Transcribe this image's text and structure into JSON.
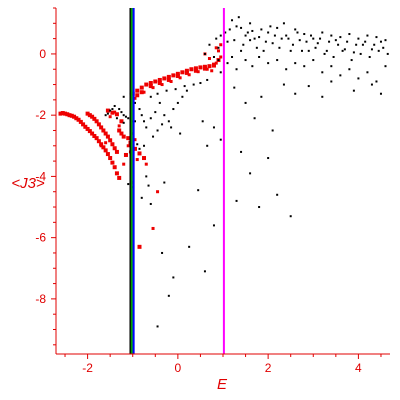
{
  "chart_data": {
    "type": "scatter",
    "title": "",
    "xlabel": "E",
    "ylabel": "<J3>",
    "xlim": [
      -2.7,
      4.7
    ],
    "ylim": [
      -9.8,
      1.5
    ],
    "grid": false,
    "x_ticks": [
      -2,
      0,
      2,
      4
    ],
    "y_ticks": [
      0,
      -2,
      -4,
      -6,
      -8
    ],
    "x_tick_labels": [
      "-2",
      "0",
      "2",
      "4"
    ],
    "y_tick_labels": [
      "0",
      "-2",
      "-4",
      "-6",
      "-8"
    ],
    "colors": {
      "axis": "#e00000",
      "red_series": "#ee0000",
      "black_series": "#000000",
      "line_black": "#000000",
      "line_green": "#00a000",
      "line_blue": "#0000ff",
      "line_magenta": "#ff00ff"
    },
    "vertical_lines": [
      {
        "x": -1.05,
        "color": "#000000"
      },
      {
        "x": -1.02,
        "color": "#00a000"
      },
      {
        "x": -0.98,
        "color": "#0000ff"
      },
      {
        "x": 1.02,
        "color": "#ff00ff"
      }
    ],
    "series": [
      {
        "color": "#ee0000",
        "size": "large",
        "points": [
          [
            -2.6,
            -1.95
          ],
          [
            -2.55,
            -1.93
          ],
          [
            -2.5,
            -1.95
          ],
          [
            -2.45,
            -1.97
          ],
          [
            -2.4,
            -2.0
          ],
          [
            -2.35,
            -2.02
          ],
          [
            -2.3,
            -2.05
          ],
          [
            -2.25,
            -2.1
          ],
          [
            -2.2,
            -2.15
          ],
          [
            -2.15,
            -2.22
          ],
          [
            -2.1,
            -2.3
          ],
          [
            -2.05,
            -2.38
          ],
          [
            -2.0,
            -2.45
          ],
          [
            -1.95,
            -2.52
          ],
          [
            -1.9,
            -2.6
          ],
          [
            -1.85,
            -2.68
          ],
          [
            -1.8,
            -2.75
          ],
          [
            -1.75,
            -2.85
          ],
          [
            -1.7,
            -2.95
          ],
          [
            -1.65,
            -3.05
          ],
          [
            -1.6,
            -3.15
          ],
          [
            -1.55,
            -3.27
          ],
          [
            -1.5,
            -3.4
          ],
          [
            -1.45,
            -3.55
          ],
          [
            -1.4,
            -3.7
          ],
          [
            -1.35,
            -3.9
          ],
          [
            -1.3,
            -4.05
          ],
          [
            -2.0,
            -1.95
          ],
          [
            -1.95,
            -2.0
          ],
          [
            -1.9,
            -2.05
          ],
          [
            -1.85,
            -2.12
          ],
          [
            -1.8,
            -2.2
          ],
          [
            -1.75,
            -2.3
          ],
          [
            -1.7,
            -2.4
          ],
          [
            -1.65,
            -2.5
          ],
          [
            -1.6,
            -2.6
          ],
          [
            -1.55,
            -2.7
          ],
          [
            -1.5,
            -2.82
          ],
          [
            -1.45,
            -2.95
          ],
          [
            -1.4,
            -3.08
          ],
          [
            -1.35,
            -3.2
          ],
          [
            -1.55,
            -1.85
          ],
          [
            -1.45,
            -1.92
          ],
          [
            -1.35,
            -1.97
          ],
          [
            -1.25,
            -2.2
          ],
          [
            -1.0,
            -1.3
          ],
          [
            -0.9,
            -1.2
          ],
          [
            -0.8,
            -1.1
          ],
          [
            -0.7,
            -1.0
          ],
          [
            -0.6,
            -0.95
          ],
          [
            -0.5,
            -0.9
          ],
          [
            -0.4,
            -0.85
          ],
          [
            -0.3,
            -0.8
          ],
          [
            -0.2,
            -0.75
          ],
          [
            -0.1,
            -0.7
          ],
          [
            0.0,
            -0.65
          ],
          [
            0.1,
            -0.6
          ],
          [
            0.2,
            -0.55
          ],
          [
            0.3,
            -0.5
          ],
          [
            0.4,
            -0.47
          ],
          [
            0.5,
            -0.44
          ],
          [
            0.6,
            -0.42
          ],
          [
            0.7,
            -0.4
          ],
          [
            0.8,
            -0.38
          ],
          [
            -0.9,
            -1.35
          ],
          [
            -0.8,
            -1.25
          ],
          [
            -0.6,
            -1.05
          ],
          [
            -0.4,
            -0.95
          ],
          [
            -0.2,
            -0.85
          ],
          [
            0.0,
            -0.72
          ],
          [
            0.2,
            -0.62
          ],
          [
            0.4,
            -0.55
          ],
          [
            0.6,
            -0.48
          ],
          [
            0.8,
            -0.35
          ],
          [
            0.9,
            -0.2
          ],
          [
            -1.3,
            -2.5
          ],
          [
            -1.25,
            -2.6
          ],
          [
            -1.2,
            -2.7
          ],
          [
            -1.1,
            -2.75
          ],
          [
            -1.05,
            -2.9
          ],
          [
            -0.95,
            -3.1
          ],
          [
            -0.85,
            -3.25
          ],
          [
            -0.75,
            -3.4
          ],
          [
            -1.15,
            -3.3
          ],
          [
            -0.85,
            -6.3
          ]
        ]
      },
      {
        "color": "#ee0000",
        "size": "small",
        "points": [
          [
            -0.95,
            -1.45
          ],
          [
            -0.75,
            -1.25
          ],
          [
            -0.55,
            -1.1
          ],
          [
            -0.35,
            -1.0
          ],
          [
            -0.15,
            -0.9
          ],
          [
            0.05,
            -0.78
          ],
          [
            0.25,
            -0.68
          ],
          [
            0.45,
            -0.58
          ],
          [
            0.65,
            -0.5
          ],
          [
            0.85,
            -0.3
          ],
          [
            0.9,
            0.1
          ],
          [
            0.95,
            -0.1
          ],
          [
            -1.0,
            -2.6
          ],
          [
            -0.95,
            -2.8
          ],
          [
            -1.1,
            -3.0
          ],
          [
            -1.05,
            -3.2
          ],
          [
            -0.9,
            -3.45
          ],
          [
            -0.7,
            -3.6
          ],
          [
            -1.4,
            -1.9
          ],
          [
            -1.5,
            -2.05
          ],
          [
            -1.3,
            -2.35
          ],
          [
            -0.55,
            -5.7
          ],
          [
            -0.45,
            -4.5
          ],
          [
            -1.2,
            -3.6
          ],
          [
            -1.6,
            -2.9
          ],
          [
            -1.7,
            -3.0
          ],
          [
            -1.0,
            -4.2
          ],
          [
            0.6,
            0.0
          ],
          [
            0.7,
            -0.15
          ],
          [
            0.85,
            0.2
          ],
          [
            0.95,
            0.3
          ],
          [
            0.75,
            -0.55
          ]
        ]
      },
      {
        "color": "#000000",
        "size": "dot",
        "points": [
          [
            -1.3,
            -1.8
          ],
          [
            -1.25,
            -1.9
          ],
          [
            -1.2,
            -2.0
          ],
          [
            -1.15,
            -2.05
          ],
          [
            -1.1,
            -2.1
          ],
          [
            -1.05,
            -2.15
          ],
          [
            -1.0,
            -2.2
          ],
          [
            -0.95,
            -2.2
          ],
          [
            -1.4,
            -1.7
          ],
          [
            -1.45,
            -1.8
          ],
          [
            -1.5,
            -1.85
          ],
          [
            -1.55,
            -1.95
          ],
          [
            -1.6,
            -2.0
          ],
          [
            -1.35,
            -2.1
          ],
          [
            -1.2,
            -2.25
          ],
          [
            -1.2,
            -1.4
          ],
          [
            -1.05,
            -1.3
          ],
          [
            -0.95,
            -1.6
          ],
          [
            -0.85,
            -1.8
          ],
          [
            -0.8,
            -2.0
          ],
          [
            -0.75,
            -2.2
          ],
          [
            -0.7,
            -2.4
          ],
          [
            -0.6,
            -2.1
          ],
          [
            -0.5,
            -1.9
          ],
          [
            -0.4,
            -1.6
          ],
          [
            -0.3,
            -2.0
          ],
          [
            -0.2,
            -2.2
          ],
          [
            -0.1,
            -1.8
          ],
          [
            0.0,
            -1.6
          ],
          [
            0.1,
            -1.4
          ],
          [
            0.2,
            -1.2
          ],
          [
            -0.6,
            -1.4
          ],
          [
            -0.45,
            -1.3
          ],
          [
            -0.25,
            -1.2
          ],
          [
            -0.05,
            -1.15
          ],
          [
            0.15,
            -1.05
          ],
          [
            0.35,
            -1.0
          ],
          [
            0.5,
            -0.95
          ],
          [
            0.65,
            -0.85
          ],
          [
            -1.0,
            -2.6
          ],
          [
            -0.9,
            -2.95
          ],
          [
            -0.85,
            -3.1
          ],
          [
            -0.75,
            -3.0
          ],
          [
            -0.55,
            -2.7
          ],
          [
            -0.45,
            -2.5
          ],
          [
            -0.35,
            -2.3
          ],
          [
            -0.15,
            -2.4
          ],
          [
            0.05,
            -2.6
          ],
          [
            -0.7,
            -4.0
          ],
          [
            -0.65,
            -4.3
          ],
          [
            -0.6,
            -4.9
          ],
          [
            -0.8,
            -4.7
          ],
          [
            -0.3,
            -4.2
          ],
          [
            0.45,
            -4.45
          ],
          [
            0.8,
            -5.6
          ],
          [
            -0.35,
            -6.5
          ],
          [
            -0.2,
            -7.9
          ],
          [
            -0.1,
            -7.3
          ],
          [
            0.25,
            -6.3
          ],
          [
            0.6,
            -7.1
          ],
          [
            -1.1,
            -4.25
          ],
          [
            -1.0,
            -4.35
          ],
          [
            -0.45,
            -8.9
          ],
          [
            0.95,
            -0.6
          ],
          [
            0.9,
            -0.2
          ],
          [
            0.85,
            0.5
          ],
          [
            0.9,
            0.2
          ],
          [
            0.95,
            0.6
          ],
          [
            0.8,
            -0.1
          ],
          [
            0.7,
            0.3
          ],
          [
            0.6,
            0.0
          ],
          [
            1.1,
            0.4
          ],
          [
            1.2,
            1.1
          ],
          [
            1.3,
            0.9
          ],
          [
            1.35,
            1.2
          ],
          [
            1.45,
            0.3
          ],
          [
            1.55,
            0.7
          ],
          [
            1.6,
            1.0
          ],
          [
            1.7,
            0.5
          ],
          [
            1.75,
            0.2
          ],
          [
            1.85,
            0.8
          ],
          [
            1.95,
            0.4
          ],
          [
            2.05,
            0.9
          ],
          [
            2.15,
            0.6
          ],
          [
            2.25,
            0.2
          ],
          [
            2.35,
            1.0
          ],
          [
            2.45,
            0.5
          ],
          [
            2.55,
            0.3
          ],
          [
            2.65,
            0.7
          ],
          [
            2.75,
            0.1
          ],
          [
            2.85,
            0.4
          ],
          [
            2.95,
            0.6
          ],
          [
            3.05,
            0.2
          ],
          [
            3.15,
            0.5
          ],
          [
            3.25,
            0.0
          ],
          [
            3.35,
            0.4
          ],
          [
            3.45,
            -0.1
          ],
          [
            3.55,
            0.3
          ],
          [
            3.65,
            0.1
          ],
          [
            3.75,
            0.4
          ],
          [
            3.85,
            -0.2
          ],
          [
            3.95,
            0.3
          ],
          [
            4.05,
            0.0
          ],
          [
            4.15,
            0.4
          ],
          [
            4.25,
            -0.1
          ],
          [
            4.35,
            0.3
          ],
          [
            4.45,
            0.1
          ],
          [
            4.55,
            0.2
          ],
          [
            4.65,
            0.0
          ],
          [
            1.1,
            -0.3
          ],
          [
            1.2,
            -0.1
          ],
          [
            1.3,
            -0.5
          ],
          [
            1.5,
            -0.2
          ],
          [
            1.65,
            -0.4
          ],
          [
            1.8,
            -0.1
          ],
          [
            2.0,
            -0.3
          ],
          [
            2.2,
            -0.2
          ],
          [
            2.4,
            -0.5
          ],
          [
            2.6,
            -0.3
          ],
          [
            2.8,
            -0.4
          ],
          [
            3.0,
            -0.2
          ],
          [
            3.2,
            -0.6
          ],
          [
            3.4,
            -0.4
          ],
          [
            3.6,
            -0.7
          ],
          [
            3.8,
            -0.5
          ],
          [
            4.0,
            -0.8
          ],
          [
            4.2,
            -0.6
          ],
          [
            4.4,
            -0.9
          ],
          [
            4.6,
            -0.4
          ],
          [
            1.25,
            -1.1
          ],
          [
            1.5,
            -1.6
          ],
          [
            1.7,
            -2.1
          ],
          [
            1.85,
            -1.4
          ],
          [
            2.1,
            -2.5
          ],
          [
            2.35,
            -1.0
          ],
          [
            2.6,
            -1.3
          ],
          [
            2.9,
            -1.05
          ],
          [
            3.2,
            -1.4
          ],
          [
            3.4,
            -0.9
          ],
          [
            3.9,
            -1.2
          ],
          [
            4.3,
            -1.0
          ],
          [
            4.5,
            -1.3
          ],
          [
            1.4,
            -3.2
          ],
          [
            1.6,
            -3.9
          ],
          [
            2.0,
            -3.4
          ],
          [
            2.2,
            -4.6
          ],
          [
            1.8,
            -5.0
          ],
          [
            2.5,
            -5.3
          ],
          [
            1.3,
            -4.8
          ],
          [
            0.95,
            -2.8
          ],
          [
            0.8,
            -2.4
          ],
          [
            0.65,
            -3.0
          ],
          [
            0.55,
            -2.2
          ],
          [
            1.4,
            0.1
          ],
          [
            1.6,
            0.45
          ],
          [
            1.9,
            0.1
          ],
          [
            2.1,
            0.35
          ],
          [
            2.3,
            0.5
          ],
          [
            2.5,
            0.1
          ],
          [
            2.7,
            0.45
          ],
          [
            2.9,
            0.1
          ],
          [
            3.1,
            0.35
          ],
          [
            3.3,
            0.1
          ],
          [
            3.5,
            0.45
          ],
          [
            3.7,
            0.15
          ],
          [
            3.9,
            0.05
          ],
          [
            4.1,
            0.3
          ],
          [
            4.3,
            0.15
          ],
          [
            4.5,
            0.4
          ],
          [
            1.05,
            0.7
          ],
          [
            1.15,
            0.8
          ],
          [
            1.25,
            0.45
          ],
          [
            1.4,
            0.85
          ],
          [
            1.5,
            0.6
          ],
          [
            1.65,
            0.75
          ],
          [
            1.8,
            0.55
          ],
          [
            2.0,
            0.7
          ],
          [
            2.2,
            0.85
          ],
          [
            2.4,
            0.6
          ],
          [
            2.6,
            0.8
          ],
          [
            2.8,
            0.65
          ],
          [
            3.0,
            0.5
          ],
          [
            3.2,
            0.7
          ],
          [
            3.4,
            0.6
          ],
          [
            3.6,
            0.55
          ],
          [
            3.8,
            0.65
          ],
          [
            4.0,
            0.5
          ],
          [
            4.2,
            0.6
          ],
          [
            4.4,
            0.55
          ],
          [
            4.6,
            0.45
          ]
        ]
      }
    ]
  }
}
